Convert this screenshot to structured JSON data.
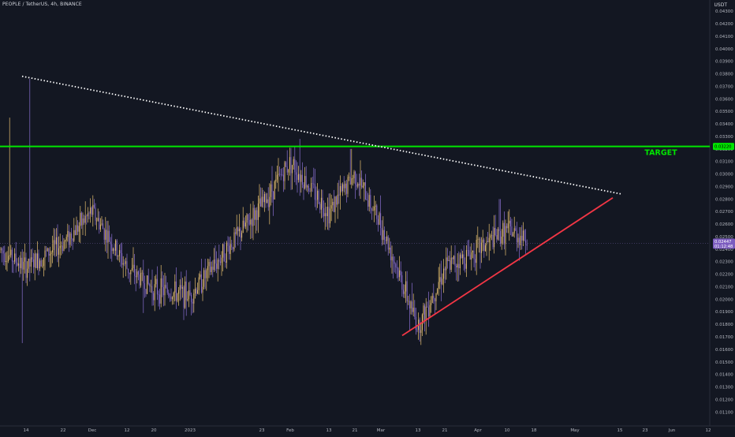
{
  "header": {
    "symbol_line": "PEOPLE / TetherUS, 4h, BINANCE",
    "currency": "USDT"
  },
  "chart_data": {
    "type": "candlestick",
    "x_ticks": [
      "14",
      "22",
      "Dec",
      "12",
      "20",
      "2023",
      "23",
      "Feb",
      "13",
      "21",
      "Mar",
      "13",
      "21",
      "Apr",
      "10",
      "18",
      "May",
      "15",
      "23",
      "Jun",
      "12"
    ],
    "y_ticks": [
      "0.04300",
      "0.04200",
      "0.04100",
      "0.04000",
      "0.03900",
      "0.03800",
      "0.03700",
      "0.03600",
      "0.03500",
      "0.03400",
      "0.03300",
      "0.03200",
      "0.03100",
      "0.03000",
      "0.02900",
      "0.02800",
      "0.02700",
      "0.02600",
      "0.02500",
      "0.02400",
      "0.02300",
      "0.02200",
      "0.02100",
      "0.02000",
      "0.01900",
      "0.01800",
      "0.01700",
      "0.01600",
      "0.01500",
      "0.01400",
      "0.01300",
      "0.01200",
      "0.01100"
    ],
    "ylim": [
      0.0105,
      0.0437
    ],
    "grid": false,
    "price_path": [
      [
        "start",
        0.024
      ],
      [
        "14",
        0.0225
      ],
      [
        "22",
        0.0245
      ],
      [
        "Dec",
        0.027
      ],
      [
        "12",
        0.0225
      ],
      [
        "20",
        0.0208
      ],
      [
        "2023",
        0.0203
      ],
      [
        "23",
        0.0275
      ],
      [
        "Feb",
        0.031
      ],
      [
        "13",
        0.027
      ],
      [
        "21",
        0.03
      ],
      [
        "Mar",
        0.026
      ],
      [
        "13",
        0.0178
      ],
      [
        "21",
        0.0225
      ],
      [
        "Apr",
        0.024
      ],
      [
        "10",
        0.0255
      ],
      [
        "18",
        0.0246
      ]
    ],
    "current_price": {
      "value": 0.02447,
      "label": "0.02447",
      "countdown": "01:12:48",
      "color": "#7c5cbf"
    },
    "horizontal_levels": [
      {
        "name": "TARGET",
        "value": 0.0322,
        "label": "0.03220",
        "color": "#00e600"
      }
    ],
    "trendlines": [
      {
        "kind": "descending-resistance",
        "style": "dotted",
        "color": "#ffffff",
        "from": {
          "x": "near 14",
          "y": 0.0378
        },
        "to": {
          "x": "just past 15 (May)",
          "y": 0.0284
        }
      },
      {
        "kind": "ascending-support",
        "style": "solid",
        "color": "#f23645",
        "from": {
          "x": "Mar, before 13",
          "y": 0.0171
        },
        "to": {
          "x": "May, before 15",
          "y": 0.0281
        }
      }
    ],
    "colors": {
      "background": "#131722",
      "candle_up": "#e8c170",
      "candle_down": "#8a6fd1",
      "axis_text": "#b2b5be"
    }
  }
}
